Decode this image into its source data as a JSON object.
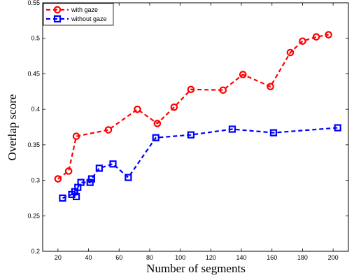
{
  "chart_data": {
    "type": "line",
    "xlabel": "Number of segments",
    "ylabel": "Overlap score",
    "xlim": [
      10,
      210
    ],
    "ylim": [
      0.2,
      0.55
    ],
    "xticks": [
      20,
      40,
      60,
      80,
      100,
      120,
      140,
      160,
      180,
      200
    ],
    "yticks": [
      0.2,
      0.25,
      0.3,
      0.35,
      0.4,
      0.45,
      0.5,
      0.55
    ],
    "xtick_labels": [
      "20",
      "40",
      "60",
      "80",
      "100",
      "120",
      "140",
      "160",
      "180",
      "200"
    ],
    "ytick_labels": [
      "0.2",
      "0.25",
      "0.3",
      "0.35",
      "0.4",
      "0.45",
      "0.5",
      "0.55"
    ],
    "grid": false,
    "legend_position": "top-left",
    "series": [
      {
        "name": "with gaze",
        "color": "#ff0000",
        "marker": "circle",
        "line_style": "dashed",
        "x": [
          20,
          27,
          32,
          53,
          72,
          85,
          96,
          107,
          128,
          141,
          159,
          172,
          180,
          189,
          197
        ],
        "y": [
          0.302,
          0.313,
          0.362,
          0.371,
          0.4,
          0.38,
          0.403,
          0.428,
          0.427,
          0.449,
          0.432,
          0.48,
          0.496,
          0.502,
          0.505
        ]
      },
      {
        "name": "without gaze",
        "color": "#0000ff",
        "marker": "square",
        "line_style": "dashed",
        "x": [
          23,
          29,
          31,
          32,
          33,
          35,
          41,
          42,
          47,
          56,
          66,
          84,
          107,
          134,
          161,
          203
        ],
        "y": [
          0.275,
          0.28,
          0.284,
          0.277,
          0.29,
          0.297,
          0.297,
          0.302,
          0.317,
          0.323,
          0.304,
          0.36,
          0.364,
          0.372,
          0.367,
          0.374
        ]
      }
    ]
  }
}
